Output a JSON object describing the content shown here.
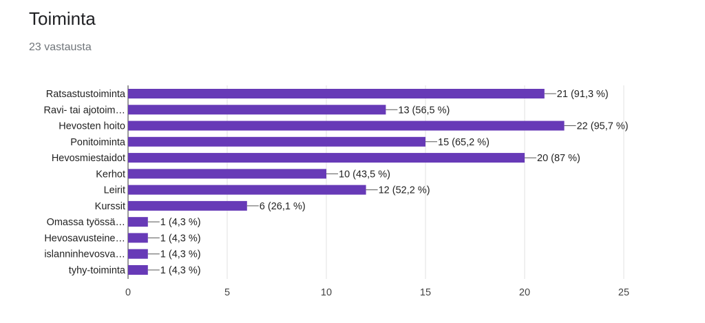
{
  "header": {
    "title": "Toiminta",
    "subtitle": "23 vastausta"
  },
  "chart_data": {
    "type": "bar",
    "orientation": "horizontal",
    "title": "Toiminta",
    "xlabel": "",
    "ylabel": "",
    "xlim": [
      0,
      25
    ],
    "ticks": [
      0,
      5,
      10,
      15,
      20,
      25
    ],
    "grid": true,
    "bar_color": "#673ab7",
    "categories": [
      "Ratsastustoiminta",
      "Ravi- tai ajotoim…",
      "Hevosten hoito",
      "Ponitoiminta",
      "Hevosmiestaidot",
      "Kerhot",
      "Leirit",
      "Kurssit",
      "Omassa työssä…",
      "Hevosavusteine…",
      "islanninhevosva…",
      "tyhy-toiminta"
    ],
    "values": [
      21,
      13,
      22,
      15,
      20,
      10,
      12,
      6,
      1,
      1,
      1,
      1
    ],
    "labels": [
      "21 (91,3 %)",
      "13 (56,5 %)",
      "22 (95,7 %)",
      "15 (65,2 %)",
      "20 (87 %)",
      "10 (43,5 %)",
      "12 (52,2 %)",
      "6 (26,1 %)",
      "1 (4,3 %)",
      "1 (4,3 %)",
      "1 (4,3 %)",
      "1 (4,3 %)"
    ]
  }
}
